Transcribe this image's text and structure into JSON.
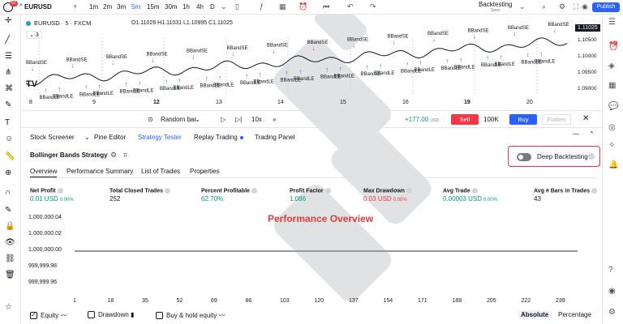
{
  "topbar": {
    "logo_badge": "61",
    "symbol": "EURUSD",
    "timeframes": [
      "1m",
      "2m",
      "3m",
      "5m",
      "15m",
      "30m",
      "1h",
      "4h",
      "D"
    ],
    "active_timeframe": "5m",
    "backtesting_label": "Backtesting",
    "backtesting_sub": "Save",
    "publish_label": "Publish"
  },
  "chart": {
    "title": "EURUSD · 5 · FXCM",
    "ohlc": "O1.11026  H1.11031  L1.10995  C1.11025",
    "indicator_count": "3",
    "last_price": "1.11025",
    "price_labels": [
      "1.10500",
      "1.10000",
      "1.09500",
      "1.09000"
    ],
    "dates": [
      "8",
      "9",
      "12",
      "13",
      "14",
      "15",
      "16",
      "19",
      "20"
    ],
    "bold_dates": [
      "12",
      "19"
    ],
    "annotation_samples": [
      "-2",
      "BBandSE",
      "+2",
      "BBandLE",
      "Buy 100000",
      "@1.10819",
      "@1.10654"
    ],
    "tv_logo": "TV"
  },
  "tradebar": {
    "random_bar_label": "Random bar",
    "speed_label": "10x",
    "pnl": "+177.00",
    "pnl_currency": "USD",
    "sell_label": "Sell",
    "quantity": "100K",
    "buy_label": "Buy",
    "flatten_label": "Flatten"
  },
  "bottom_tabs": [
    {
      "label": "Stock Screener"
    },
    {
      "label": "Pine Editor"
    },
    {
      "label": "Strategy Tester"
    },
    {
      "label": "Replay Trading"
    },
    {
      "label": "Trading Panel"
    }
  ],
  "strategy": {
    "name": "Bollinger Bands Strategy",
    "deep_backtesting_label": "Deep Backtesting",
    "subtabs": [
      "Overview",
      "Performance Summary",
      "List of Trades",
      "Properties"
    ],
    "metrics": [
      {
        "label": "Net Profit",
        "value": "0.01 USD",
        "pct": "0.00%",
        "color": "#089981"
      },
      {
        "label": "Total Closed Trades",
        "value": "252",
        "pct": "",
        "color": "#131722"
      },
      {
        "label": "Percent Profitable",
        "value": "62.70%",
        "pct": "",
        "color": "#089981"
      },
      {
        "label": "Profit Factor",
        "value": "1.086",
        "pct": "",
        "color": "#089981"
      },
      {
        "label": "Max Drawdown",
        "value": "0.03 USD",
        "pct": "0.00%",
        "color": "#f23645"
      },
      {
        "label": "Avg Trade",
        "value": "0.00003 USD",
        "pct": "0.00%",
        "color": "#089981"
      },
      {
        "label": "Avg # Bars in Trades",
        "value": "43",
        "pct": "",
        "color": "#131722"
      }
    ],
    "overlay_title": "Performance Overview",
    "y_labels": [
      "1,000,000.04",
      "1,000,000.02",
      "1,000,000.00",
      "999,999.98",
      "999,999.96"
    ],
    "x_labels": [
      "1",
      "18",
      "35",
      "52",
      "69",
      "86",
      "103",
      "120",
      "137",
      "154",
      "171",
      "188",
      "205",
      "222",
      "239"
    ],
    "legend": {
      "equity": "Equity",
      "drawdown": "Drawdown",
      "buy_hold": "Buy & hold equity",
      "absolute": "Absolute",
      "percentage": "Percentage"
    }
  }
}
